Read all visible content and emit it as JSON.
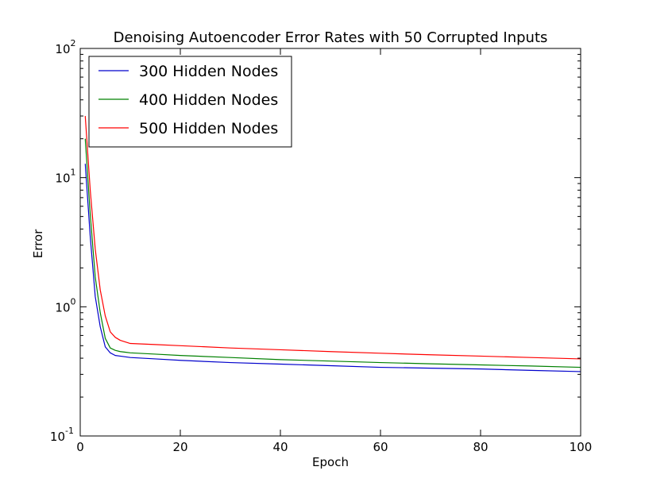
{
  "chart_data": {
    "type": "line",
    "title": "Denoising Autoencoder Error Rates with 50 Corrupted Inputs",
    "xlabel": "Epoch",
    "ylabel": "Error",
    "xlim": [
      0,
      100
    ],
    "ylim": [
      0.1,
      100
    ],
    "yscale": "log",
    "grid": false,
    "legend_position": "top-left",
    "x_ticks": [
      0,
      20,
      40,
      60,
      80,
      100
    ],
    "y_ticks": [
      {
        "value": 0.1,
        "base": "10",
        "exp": "-1"
      },
      {
        "value": 1,
        "base": "10",
        "exp": "0"
      },
      {
        "value": 10,
        "base": "10",
        "exp": "1"
      },
      {
        "value": 100,
        "base": "10",
        "exp": "2"
      }
    ],
    "series": [
      {
        "name": "300 Hidden Nodes",
        "color": "#0000cc",
        "x": [
          1,
          2,
          3,
          4,
          5,
          6,
          7,
          8,
          9,
          10,
          15,
          20,
          30,
          40,
          50,
          60,
          70,
          80,
          90,
          100
        ],
        "y": [
          12.8,
          3.5,
          1.2,
          0.7,
          0.49,
          0.44,
          0.42,
          0.415,
          0.41,
          0.405,
          0.395,
          0.385,
          0.37,
          0.36,
          0.35,
          0.34,
          0.335,
          0.33,
          0.322,
          0.315
        ]
      },
      {
        "name": "400 Hidden Nodes",
        "color": "#008000",
        "x": [
          1,
          2,
          3,
          4,
          5,
          6,
          7,
          8,
          9,
          10,
          15,
          20,
          30,
          40,
          50,
          60,
          70,
          80,
          90,
          100
        ],
        "y": [
          20,
          5.2,
          1.7,
          0.9,
          0.57,
          0.48,
          0.46,
          0.45,
          0.445,
          0.44,
          0.43,
          0.42,
          0.405,
          0.39,
          0.38,
          0.37,
          0.362,
          0.355,
          0.348,
          0.34
        ]
      },
      {
        "name": "500 Hidden Nodes",
        "color": "#ff0000",
        "x": [
          1,
          2,
          3,
          4,
          5,
          6,
          7,
          8,
          9,
          10,
          15,
          20,
          30,
          40,
          50,
          60,
          70,
          80,
          90,
          100
        ],
        "y": [
          30,
          8.0,
          2.8,
          1.35,
          0.85,
          0.64,
          0.58,
          0.55,
          0.535,
          0.52,
          0.51,
          0.5,
          0.48,
          0.465,
          0.45,
          0.437,
          0.425,
          0.415,
          0.405,
          0.395
        ]
      }
    ]
  }
}
